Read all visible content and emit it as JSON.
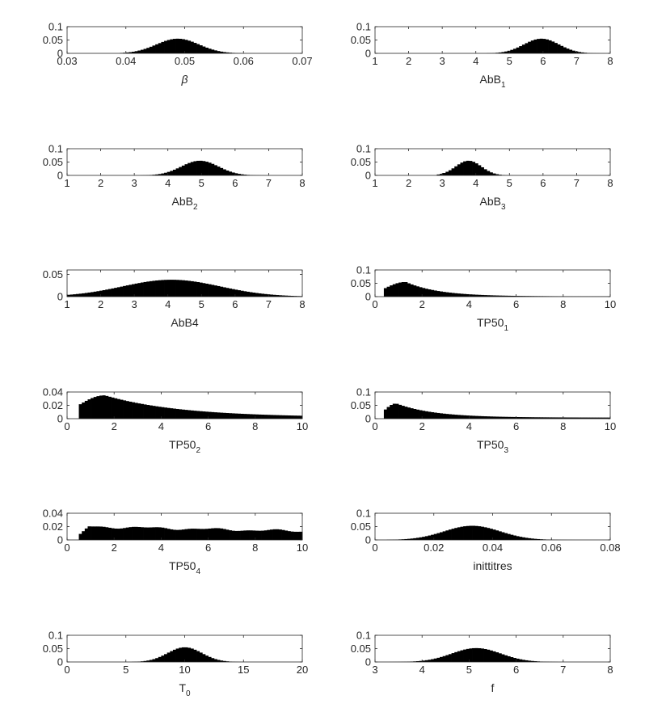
{
  "figure": {
    "background": "#ffffff",
    "bar_color": "#000000",
    "axis_color": "#262626"
  },
  "chart_data": [
    {
      "type": "bar",
      "xlabel": "β",
      "xlim": [
        0.03,
        0.07
      ],
      "ylim": [
        0,
        0.1
      ],
      "xticks": [
        "0.03",
        "0.04",
        "0.05",
        "0.06",
        "0.07"
      ],
      "yticks": [
        "0",
        "0.05",
        "0.1"
      ],
      "distribution": {
        "center": 0.0488,
        "spread": 0.0036,
        "peak": 0.055,
        "start": 0.039,
        "end": 0.066
      }
    },
    {
      "type": "bar",
      "xlabel": "AbB",
      "xlabel_subscript": "1",
      "xlim": [
        1,
        8
      ],
      "ylim": [
        0,
        0.1
      ],
      "xticks": [
        "1",
        "2",
        "3",
        "4",
        "5",
        "6",
        "7",
        "8"
      ],
      "yticks": [
        "0",
        "0.05",
        "0.1"
      ],
      "distribution": {
        "center": 5.95,
        "spread": 0.52,
        "peak": 0.055,
        "start": 4.3,
        "end": 7.9
      }
    },
    {
      "type": "bar",
      "xlabel": "AbB",
      "xlabel_subscript": "2",
      "xlim": [
        1,
        8
      ],
      "ylim": [
        0,
        0.1
      ],
      "xticks": [
        "1",
        "2",
        "3",
        "4",
        "5",
        "6",
        "7",
        "8"
      ],
      "yticks": [
        "0",
        "0.05",
        "0.1"
      ],
      "distribution": {
        "center": 4.95,
        "spread": 0.55,
        "peak": 0.055,
        "start": 3.2,
        "end": 7.5
      }
    },
    {
      "type": "bar",
      "xlabel": "AbB",
      "xlabel_subscript": "3",
      "xlim": [
        1,
        8
      ],
      "ylim": [
        0,
        0.1
      ],
      "xticks": [
        "1",
        "2",
        "3",
        "4",
        "5",
        "6",
        "7",
        "8"
      ],
      "yticks": [
        "0",
        "0.05",
        "0.1"
      ],
      "distribution": {
        "center": 3.78,
        "spread": 0.38,
        "peak": 0.055,
        "start": 2.8,
        "end": 5.1
      }
    },
    {
      "type": "bar",
      "xlabel": "AbB4",
      "xlim": [
        1,
        8
      ],
      "ylim": [
        0,
        0.06
      ],
      "xticks": [
        "1",
        "2",
        "3",
        "4",
        "5",
        "6",
        "7",
        "8"
      ],
      "yticks": [
        "0",
        "0.05"
      ],
      "distribution": {
        "center": 4.1,
        "spread": 1.45,
        "peak": 0.038,
        "start": 1.0,
        "end": 8.0
      }
    },
    {
      "type": "bar",
      "xlabel": "TP50",
      "xlabel_subscript": "1",
      "xlim": [
        0,
        10
      ],
      "ylim": [
        0,
        0.1
      ],
      "xticks": [
        "0",
        "2",
        "4",
        "6",
        "8",
        "10"
      ],
      "yticks": [
        "0",
        "0.05",
        "0.1"
      ],
      "distribution": {
        "shape": "skewed",
        "start": 0.4,
        "mode": 1.3,
        "peak": 0.055,
        "decay": 1.4,
        "floor": 0.001,
        "end": 10
      }
    },
    {
      "type": "bar",
      "xlabel": "TP50",
      "xlabel_subscript": "2",
      "xlim": [
        0,
        10
      ],
      "ylim": [
        0,
        0.04
      ],
      "xticks": [
        "0",
        "2",
        "4",
        "6",
        "8",
        "10"
      ],
      "yticks": [
        "0",
        "0.02",
        "0.04"
      ],
      "distribution": {
        "shape": "skewed",
        "start": 0.45,
        "mode": 1.6,
        "peak": 0.035,
        "decay": 3.2,
        "floor": 0.002,
        "end": 10
      }
    },
    {
      "type": "bar",
      "xlabel": "TP50",
      "xlabel_subscript": "3",
      "xlim": [
        0,
        10
      ],
      "ylim": [
        0,
        0.1
      ],
      "xticks": [
        "0",
        "2",
        "4",
        "6",
        "8",
        "10"
      ],
      "yticks": [
        "0",
        "0.05",
        "0.1"
      ],
      "distribution": {
        "shape": "skewed",
        "start": 0.4,
        "mode": 0.9,
        "peak": 0.057,
        "decay": 1.6,
        "floor": 0.004,
        "end": 10
      }
    },
    {
      "type": "bar",
      "xlabel": "TP50",
      "xlabel_subscript": "4",
      "xlim": [
        0,
        10
      ],
      "ylim": [
        0,
        0.04
      ],
      "xticks": [
        "0",
        "2",
        "4",
        "6",
        "8",
        "10"
      ],
      "yticks": [
        "0",
        "0.02",
        "0.04"
      ],
      "distribution": {
        "shape": "plateau",
        "start": 0.5,
        "rise_end": 0.9,
        "level_start": 0.02,
        "level_end": 0.013,
        "peak": 0.022,
        "end": 10
      }
    },
    {
      "type": "bar",
      "xlabel": "inittitres",
      "xlim": [
        0,
        0.08
      ],
      "ylim": [
        0,
        0.1
      ],
      "xticks": [
        "0",
        "0.02",
        "0.04",
        "0.06",
        "0.08"
      ],
      "yticks": [
        "0",
        "0.05",
        "0.1"
      ],
      "distribution": {
        "center": 0.033,
        "spread": 0.0095,
        "peak": 0.053,
        "start": 0.004,
        "end": 0.07
      }
    },
    {
      "type": "bar",
      "xlabel": "T",
      "xlabel_subscript": "0",
      "xlim": [
        0,
        20
      ],
      "ylim": [
        0,
        0.1
      ],
      "xticks": [
        "0",
        "5",
        "10",
        "15",
        "20"
      ],
      "yticks": [
        "0",
        "0.05",
        "0.1"
      ],
      "distribution": {
        "center": 10.0,
        "spread": 1.45,
        "peak": 0.055,
        "start": 5.5,
        "end": 15.5
      }
    },
    {
      "type": "bar",
      "xlabel": "f",
      "xlim": [
        3,
        8
      ],
      "ylim": [
        0,
        0.1
      ],
      "xticks": [
        "3",
        "4",
        "5",
        "6",
        "7",
        "8"
      ],
      "yticks": [
        "0",
        "0.05",
        "0.1"
      ],
      "distribution": {
        "center": 5.15,
        "spread": 0.52,
        "peak": 0.052,
        "start": 3.3,
        "end": 6.9
      }
    }
  ]
}
